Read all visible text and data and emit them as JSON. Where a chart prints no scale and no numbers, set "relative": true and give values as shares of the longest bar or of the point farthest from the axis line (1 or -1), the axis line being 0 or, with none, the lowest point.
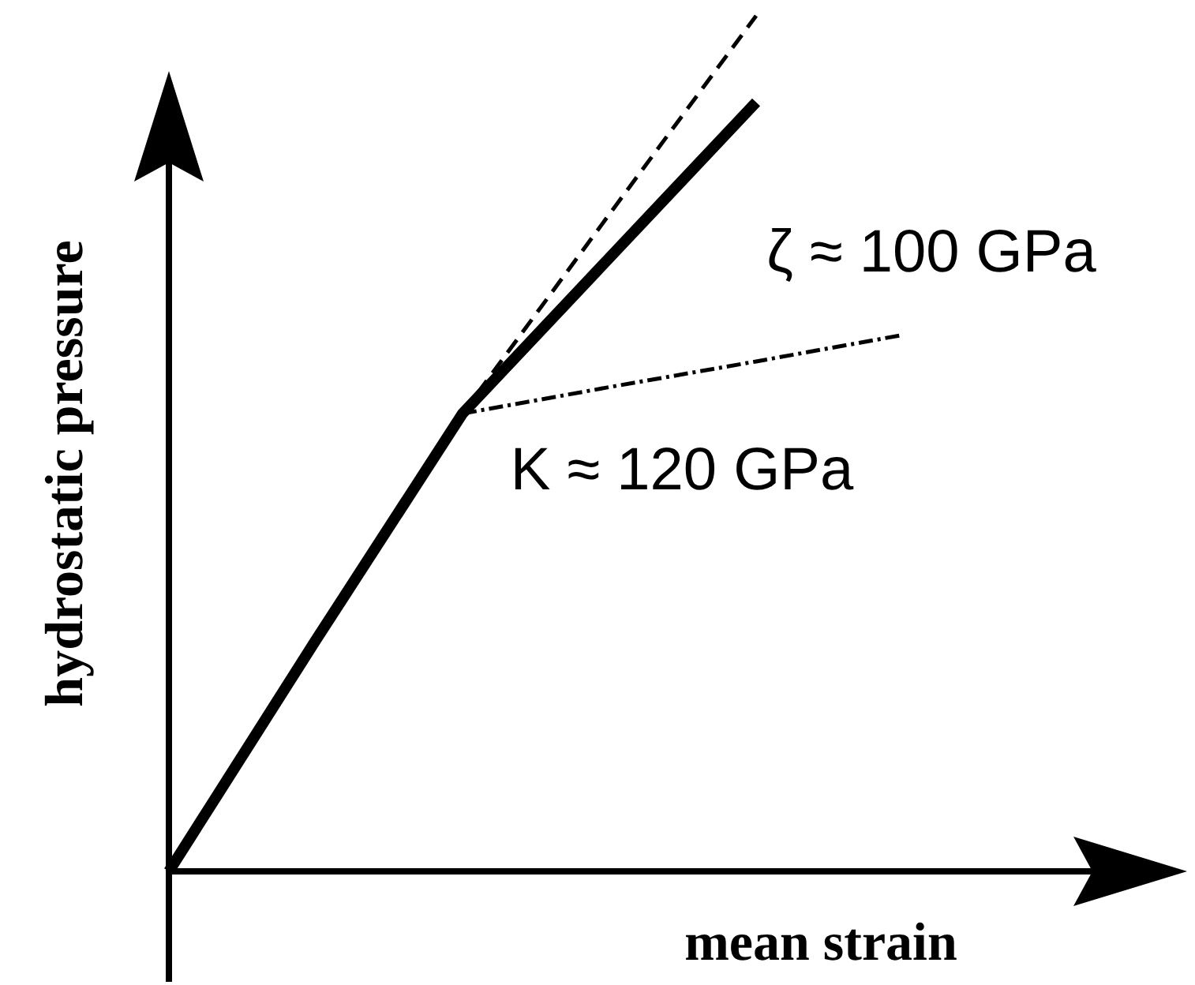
{
  "chart_data": {
    "type": "line",
    "relative": true,
    "xlabel": "mean strain",
    "ylabel": "hydrostatic pressure",
    "marker": "none",
    "categories": [
      null,
      null,
      null,
      null,
      null,
      null,
      null
    ],
    "series": [
      {
        "color": "#000000",
        "line_style": "solid",
        "values": [
          0,
          0.27,
          0.535,
          0.717,
          0.899,
          null,
          null
        ]
      },
      {
        "color": "#000000",
        "line_style": "dashed",
        "values": [
          null,
          null,
          0.535,
          0.768,
          1,
          null,
          null
        ]
      },
      {
        "color": "#000000",
        "line_style": "dotted",
        "values": [
          null,
          null,
          0.535,
          0.566,
          0.596,
          0.627,
          null
        ]
      }
    ],
    "annotations": [
      "ζ ≈ 100 GPa",
      "K ≈ 120 GPa"
    ]
  }
}
